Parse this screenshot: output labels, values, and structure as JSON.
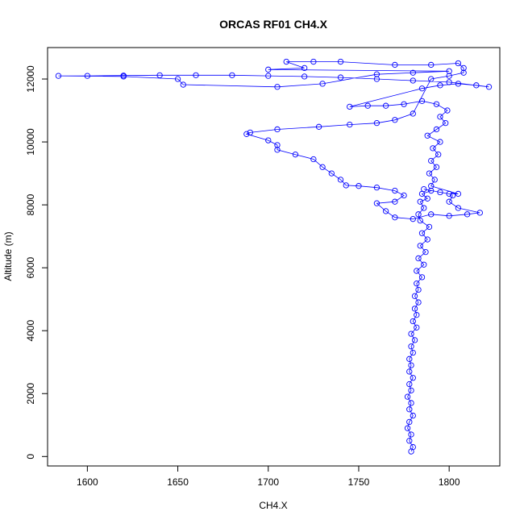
{
  "chart_data": {
    "type": "scatter",
    "title": "ORCAS RF01 CH4.X",
    "xlabel": "CH4.X",
    "ylabel": "Altitude (m)",
    "xlim": [
      1578,
      1828
    ],
    "ylim": [
      -300,
      13000
    ],
    "x_ticks": [
      1600,
      1650,
      1700,
      1750,
      1800
    ],
    "y_ticks": [
      0,
      2000,
      4000,
      6000,
      8000,
      10000,
      12000
    ],
    "grid": false,
    "legend": "none",
    "marker": "open-circle",
    "connected": true,
    "color": "#0000ff",
    "series": [
      {
        "values": [
          [
            1779,
            160
          ],
          [
            1780,
            300
          ],
          [
            1778,
            500
          ],
          [
            1779,
            700
          ],
          [
            1777,
            900
          ],
          [
            1778,
            1100
          ],
          [
            1780,
            1300
          ],
          [
            1778,
            1500
          ],
          [
            1779,
            1700
          ],
          [
            1777,
            1900
          ],
          [
            1779,
            2100
          ],
          [
            1778,
            2300
          ],
          [
            1780,
            2500
          ],
          [
            1778,
            2700
          ],
          [
            1779,
            2900
          ],
          [
            1778,
            3100
          ],
          [
            1780,
            3300
          ],
          [
            1779,
            3500
          ],
          [
            1781,
            3700
          ],
          [
            1779,
            3900
          ],
          [
            1782,
            4100
          ],
          [
            1780,
            4300
          ],
          [
            1782,
            4500
          ],
          [
            1781,
            4700
          ],
          [
            1783,
            4900
          ],
          [
            1781,
            5100
          ],
          [
            1783,
            5300
          ],
          [
            1782,
            5500
          ],
          [
            1785,
            5700
          ],
          [
            1782,
            5900
          ],
          [
            1786,
            6100
          ],
          [
            1783,
            6300
          ],
          [
            1787,
            6500
          ],
          [
            1784,
            6700
          ],
          [
            1788,
            6900
          ],
          [
            1785,
            7100
          ],
          [
            1789,
            7300
          ],
          [
            1784,
            7500
          ],
          [
            1783,
            7700
          ],
          [
            1786,
            7900
          ],
          [
            1784,
            8100
          ],
          [
            1788,
            8200
          ],
          [
            1785,
            8350
          ],
          [
            1790,
            8450
          ],
          [
            1786,
            8500
          ],
          [
            1795,
            8400
          ],
          [
            1800,
            8350
          ],
          [
            1805,
            8350
          ],
          [
            1790,
            8600
          ],
          [
            1792,
            8800
          ],
          [
            1789,
            9000
          ],
          [
            1793,
            9200
          ],
          [
            1790,
            9400
          ],
          [
            1794,
            9600
          ],
          [
            1791,
            9800
          ],
          [
            1795,
            10000
          ],
          [
            1788,
            10200
          ],
          [
            1793,
            10400
          ],
          [
            1798,
            10600
          ],
          [
            1795,
            10800
          ],
          [
            1799,
            11000
          ],
          [
            1793,
            11200
          ],
          [
            1785,
            11300
          ],
          [
            1775,
            11200
          ],
          [
            1765,
            11150
          ],
          [
            1755,
            11150
          ],
          [
            1745,
            11120
          ],
          [
            1785,
            11700
          ],
          [
            1795,
            11800
          ],
          [
            1805,
            11850
          ],
          [
            1815,
            11800
          ],
          [
            1822,
            11750
          ],
          [
            1800,
            11900
          ],
          [
            1780,
            11950
          ],
          [
            1760,
            12000
          ],
          [
            1740,
            12050
          ],
          [
            1720,
            12080
          ],
          [
            1700,
            12100
          ],
          [
            1680,
            12120
          ],
          [
            1660,
            12120
          ],
          [
            1640,
            12120
          ],
          [
            1620,
            12110
          ],
          [
            1600,
            12100
          ],
          [
            1584,
            12100
          ],
          [
            1620,
            12080
          ],
          [
            1650,
            12000
          ],
          [
            1653,
            11820
          ],
          [
            1705,
            11750
          ],
          [
            1730,
            11850
          ],
          [
            1760,
            12150
          ],
          [
            1780,
            12200
          ],
          [
            1800,
            12250
          ],
          [
            1700,
            12300
          ],
          [
            1720,
            12350
          ],
          [
            1710,
            12550
          ],
          [
            1725,
            12550
          ],
          [
            1740,
            12550
          ],
          [
            1770,
            12450
          ],
          [
            1790,
            12450
          ],
          [
            1805,
            12500
          ],
          [
            1808,
            12350
          ],
          [
            1808,
            12200
          ],
          [
            1800,
            12100
          ],
          [
            1790,
            12000
          ],
          [
            1780,
            10900
          ],
          [
            1770,
            10700
          ],
          [
            1760,
            10600
          ],
          [
            1745,
            10550
          ],
          [
            1728,
            10480
          ],
          [
            1705,
            10400
          ],
          [
            1690,
            10300
          ],
          [
            1688,
            10250
          ],
          [
            1700,
            10050
          ],
          [
            1705,
            9900
          ],
          [
            1705,
            9750
          ],
          [
            1715,
            9600
          ],
          [
            1725,
            9450
          ],
          [
            1730,
            9200
          ],
          [
            1735,
            9000
          ],
          [
            1740,
            8800
          ],
          [
            1743,
            8620
          ],
          [
            1750,
            8600
          ],
          [
            1760,
            8550
          ],
          [
            1770,
            8450
          ],
          [
            1775,
            8300
          ],
          [
            1770,
            8100
          ],
          [
            1760,
            8050
          ],
          [
            1765,
            7800
          ],
          [
            1770,
            7600
          ],
          [
            1780,
            7550
          ],
          [
            1790,
            7700
          ],
          [
            1800,
            7650
          ],
          [
            1810,
            7700
          ],
          [
            1817,
            7750
          ],
          [
            1805,
            7900
          ],
          [
            1800,
            8100
          ],
          [
            1802,
            8300
          ]
        ]
      }
    ]
  }
}
